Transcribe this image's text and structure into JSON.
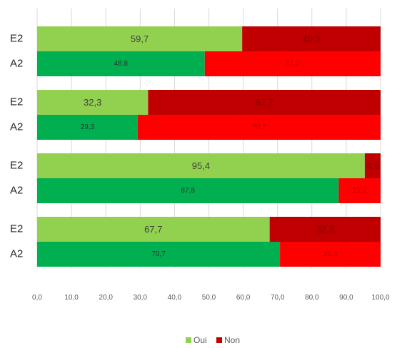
{
  "chart_data": {
    "type": "bar",
    "orientation": "horizontal",
    "stacked": true,
    "title": "",
    "xlabel": "",
    "ylabel": "",
    "xlim": [
      0,
      100
    ],
    "x_ticks": [
      "0,0",
      "10,0",
      "20,0",
      "30,0",
      "40,0",
      "50,0",
      "60,0",
      "70,0",
      "80,0",
      "90,0",
      "100,0"
    ],
    "grid": "vertical",
    "legend": {
      "position": "bottom",
      "entries": [
        "Oui",
        "Non"
      ]
    },
    "groups": [
      {
        "bars": [
          {
            "label": "E2",
            "oui": 59.7,
            "non": 40.3,
            "oui_label": "59,7",
            "non_label": "40,3"
          },
          {
            "label": "A2",
            "oui": 48.8,
            "non": 51.2,
            "oui_label": "48,8",
            "non_label": "51,2"
          }
        ]
      },
      {
        "bars": [
          {
            "label": "E2",
            "oui": 32.3,
            "non": 67.7,
            "oui_label": "32,3",
            "non_label": "67,7"
          },
          {
            "label": "A2",
            "oui": 29.3,
            "non": 70.7,
            "oui_label": "29,3",
            "non_label": "70,7"
          }
        ]
      },
      {
        "bars": [
          {
            "label": "E2",
            "oui": 95.4,
            "non": 4.6,
            "oui_label": "95,4",
            "non_label": "4,6"
          },
          {
            "label": "A2",
            "oui": 87.8,
            "non": 12.2,
            "oui_label": "87,8",
            "non_label": "12,2"
          }
        ]
      },
      {
        "bars": [
          {
            "label": "E2",
            "oui": 67.7,
            "non": 32.3,
            "oui_label": "67,7",
            "non_label": "32,3"
          },
          {
            "label": "A2",
            "oui": 70.7,
            "non": 29.3,
            "oui_label": "70,7",
            "non_label": "29,3"
          }
        ]
      }
    ]
  },
  "colors": {
    "oui_e2": "#92d050",
    "non_e2": "#c00000",
    "oui_a2": "#00b050",
    "non_a2": "#ff0000",
    "grid": "#d9d9d9",
    "legend_oui": "#92d050",
    "legend_non": "#c00000"
  }
}
